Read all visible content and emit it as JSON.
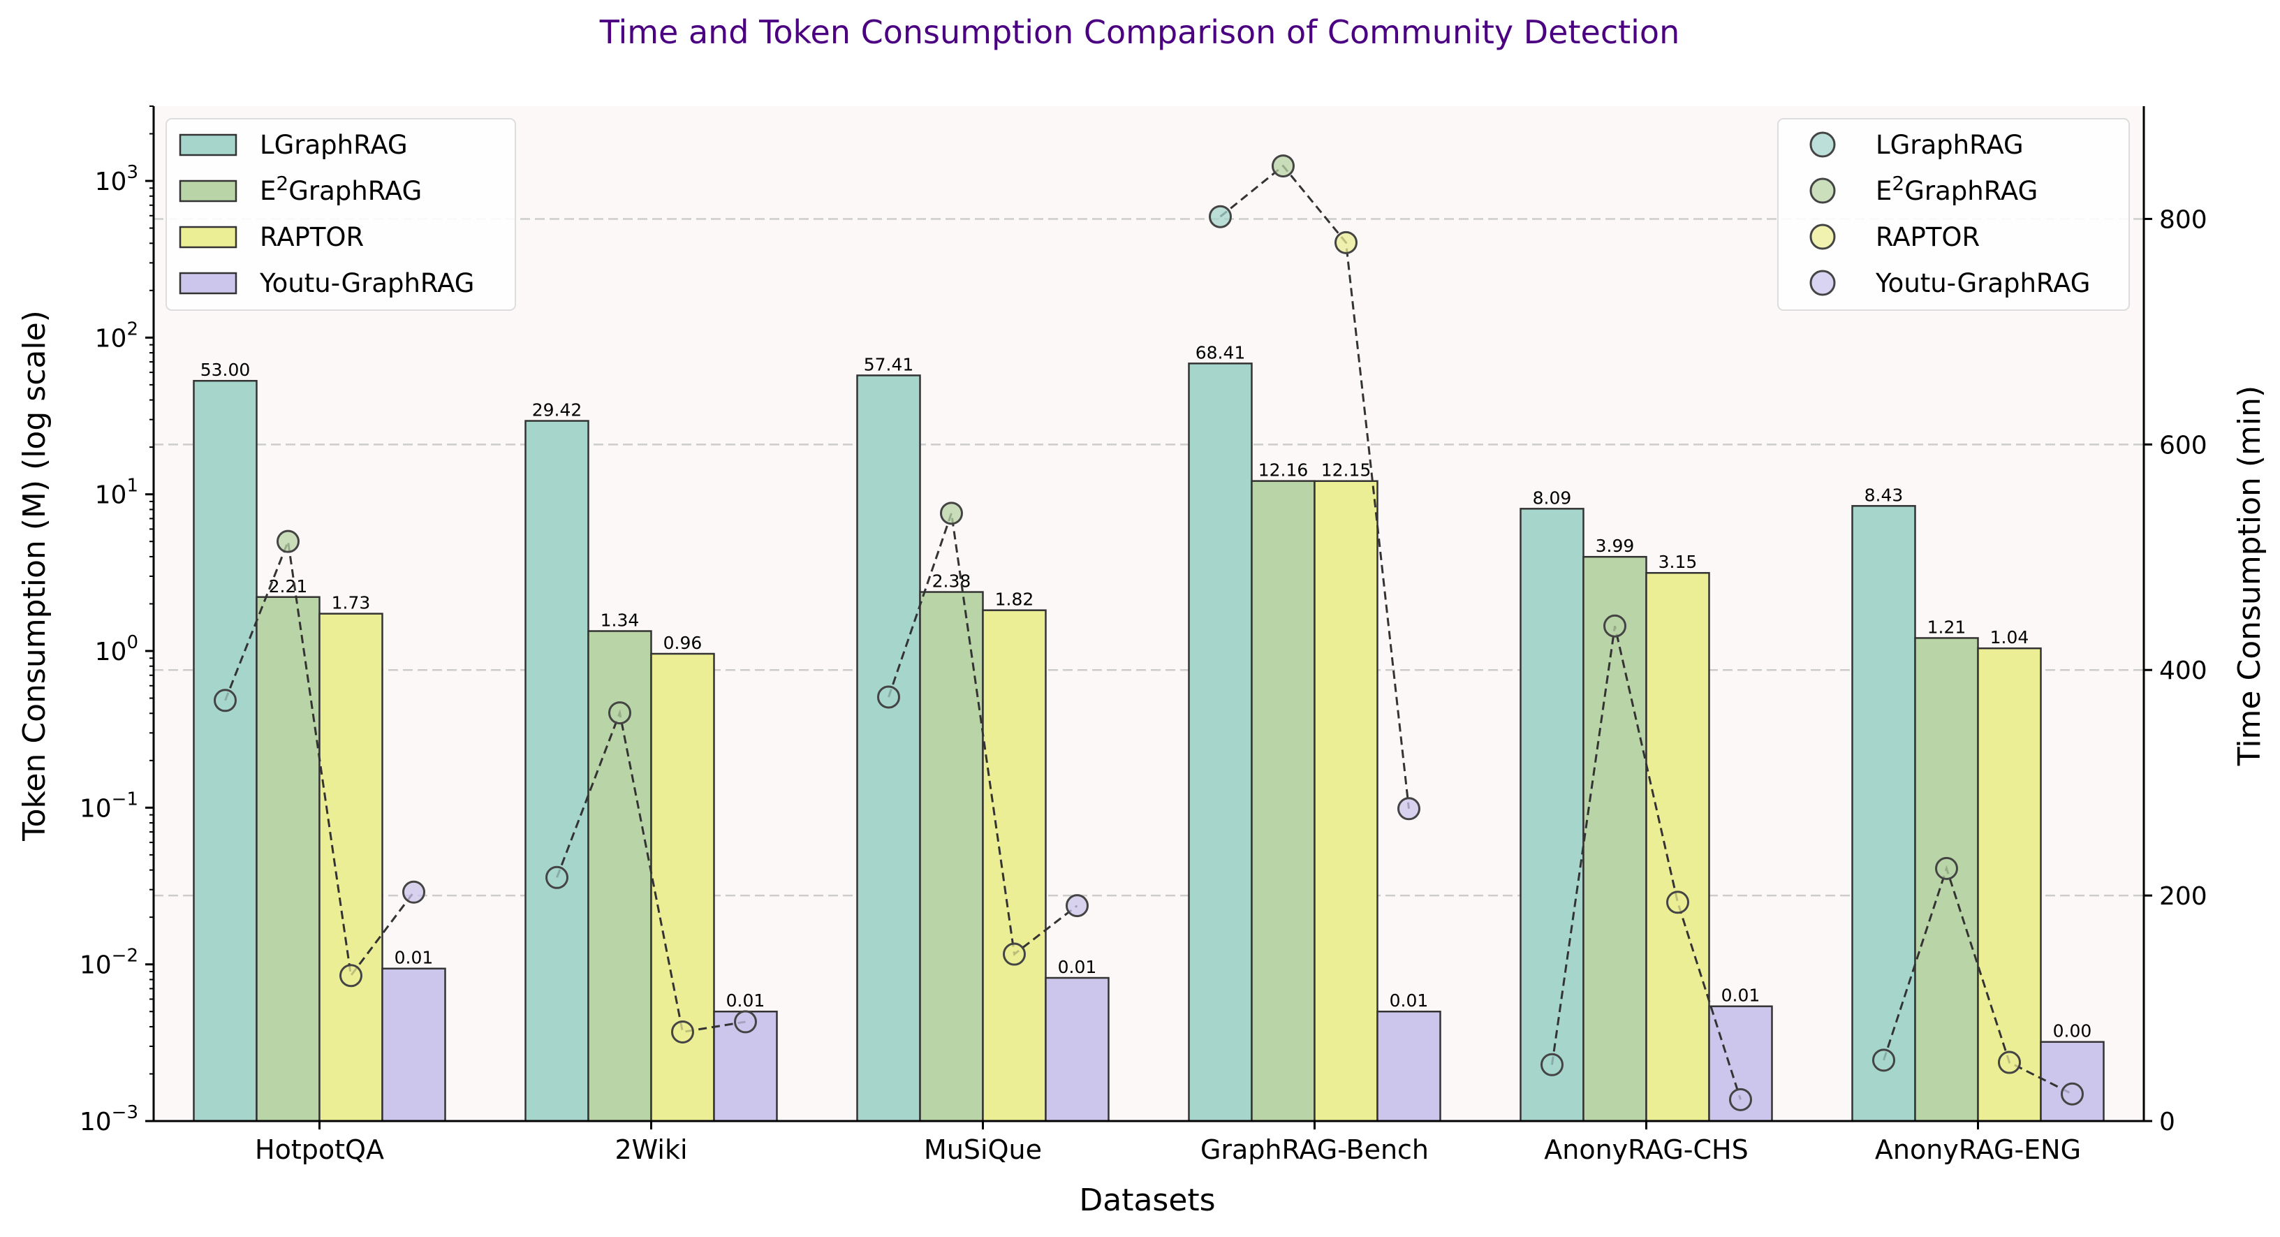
{
  "chart_data": {
    "type": "bar",
    "title": "Time and Token Consumption Comparison of Community Detection",
    "xlabel": "Datasets",
    "ylabel": "Token Consumption (M) (log scale)",
    "y2label": "Time Consumption (min)",
    "yscale": "log",
    "ylim": [
      0.001,
      3000
    ],
    "y2lim": [
      0,
      900
    ],
    "yticks": [
      {
        "value": 0.001,
        "base": "10",
        "exp": "−3"
      },
      {
        "value": 0.01,
        "base": "10",
        "exp": "−2"
      },
      {
        "value": 0.1,
        "base": "10",
        "exp": "−1"
      },
      {
        "value": 1,
        "base": "10",
        "exp": "0"
      },
      {
        "value": 10,
        "base": "10",
        "exp": "1"
      },
      {
        "value": 100,
        "base": "10",
        "exp": "2"
      },
      {
        "value": 1000,
        "base": "10",
        "exp": "3"
      }
    ],
    "y2ticks": [
      {
        "value": 0,
        "label": "0"
      },
      {
        "value": 200,
        "label": "200"
      },
      {
        "value": 400,
        "label": "400"
      },
      {
        "value": 600,
        "label": "600"
      },
      {
        "value": 800,
        "label": "800"
      }
    ],
    "categories": [
      "HotpotQA",
      "2Wiki",
      "MuSiQue",
      "GraphRAG-Bench",
      "AnonyRAG-CHS",
      "AnonyRAG-ENG"
    ],
    "series": [
      {
        "name": "LGraphRAG",
        "name_base": "LGraphRAG",
        "name_sup": "",
        "name_suffix": "",
        "color": "#a6d5cc",
        "token_values": [
          53.0,
          29.42,
          57.41,
          68.41,
          8.09,
          8.43
        ],
        "token_labels": [
          "53.00",
          "29.42",
          "57.41",
          "68.41",
          "8.09",
          "8.43"
        ],
        "time_values": [
          373,
          216,
          376,
          802,
          50,
          54
        ]
      },
      {
        "name": "E2GraphRAG",
        "name_base": "E",
        "name_sup": "2",
        "name_suffix": "GraphRAG",
        "color": "#b9d4a6",
        "token_values": [
          2.21,
          1.34,
          2.38,
          12.16,
          3.99,
          1.21
        ],
        "token_labels": [
          "2.21",
          "1.34",
          "2.38",
          "12.16",
          "3.99",
          "1.21"
        ],
        "time_values": [
          514,
          362,
          539,
          847,
          439,
          224
        ]
      },
      {
        "name": "RAPTOR",
        "name_base": "RAPTOR",
        "name_sup": "",
        "name_suffix": "",
        "color": "#ecee96",
        "token_values": [
          1.73,
          0.96,
          1.82,
          12.15,
          3.15,
          1.04
        ],
        "token_labels": [
          "1.73",
          "0.96",
          "1.82",
          "12.15",
          "3.15",
          "1.04"
        ],
        "time_values": [
          129,
          79,
          148,
          779,
          194,
          52
        ]
      },
      {
        "name": "Youtu-GraphRAG",
        "name_base": "Youtu-GraphRAG",
        "name_sup": "",
        "name_suffix": "",
        "color": "#ccc5ec",
        "token_values": [
          0.0094,
          0.005,
          0.0082,
          0.005,
          0.0054,
          0.0032
        ],
        "token_labels": [
          "0.01",
          "0.01",
          "0.01",
          "0.01",
          "0.01",
          "0.00"
        ],
        "time_values": [
          203,
          88,
          191,
          277,
          19,
          24
        ]
      }
    ],
    "legend_bars_position": "upper-left",
    "legend_points_position": "upper-right",
    "grid": "horizontal dashed (secondary axis)"
  }
}
